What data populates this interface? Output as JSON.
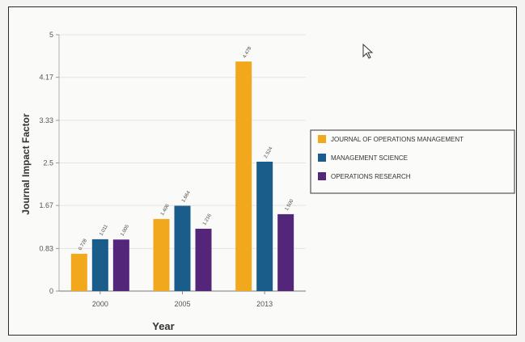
{
  "chart_data": {
    "type": "bar",
    "categories": [
      "2000",
      "2005",
      "2013"
    ],
    "series": [
      {
        "name": "JOURNAL OF OPERATIONS MANAGEMENT",
        "color": "#f2a81d",
        "values": [
          0.728,
          1.406,
          4.478
        ],
        "labels": [
          "0.728",
          "1.406",
          "4.478"
        ]
      },
      {
        "name": "MANAGEMENT SCIENCE",
        "color": "#1a5c8a",
        "values": [
          1.011,
          1.664,
          2.524
        ],
        "labels": [
          "1.011",
          "1.664",
          "2.524"
        ]
      },
      {
        "name": "OPERATIONS RESEARCH",
        "color": "#53267a",
        "values": [
          1.005,
          1.216,
          1.5
        ],
        "labels": [
          "1.005",
          "1.216",
          "1.500"
        ]
      }
    ],
    "yticks": [
      0,
      0.83,
      1.67,
      2.5,
      3.33,
      4.17,
      5
    ],
    "ytick_labels": [
      "0",
      "0.83",
      "1.67",
      "2.5",
      "3.33",
      "4.17",
      "5"
    ],
    "ylim": [
      0,
      5
    ],
    "xlabel": "Year",
    "ylabel": "Journal Impact Factor",
    "grid": true,
    "legend_position": "right"
  }
}
